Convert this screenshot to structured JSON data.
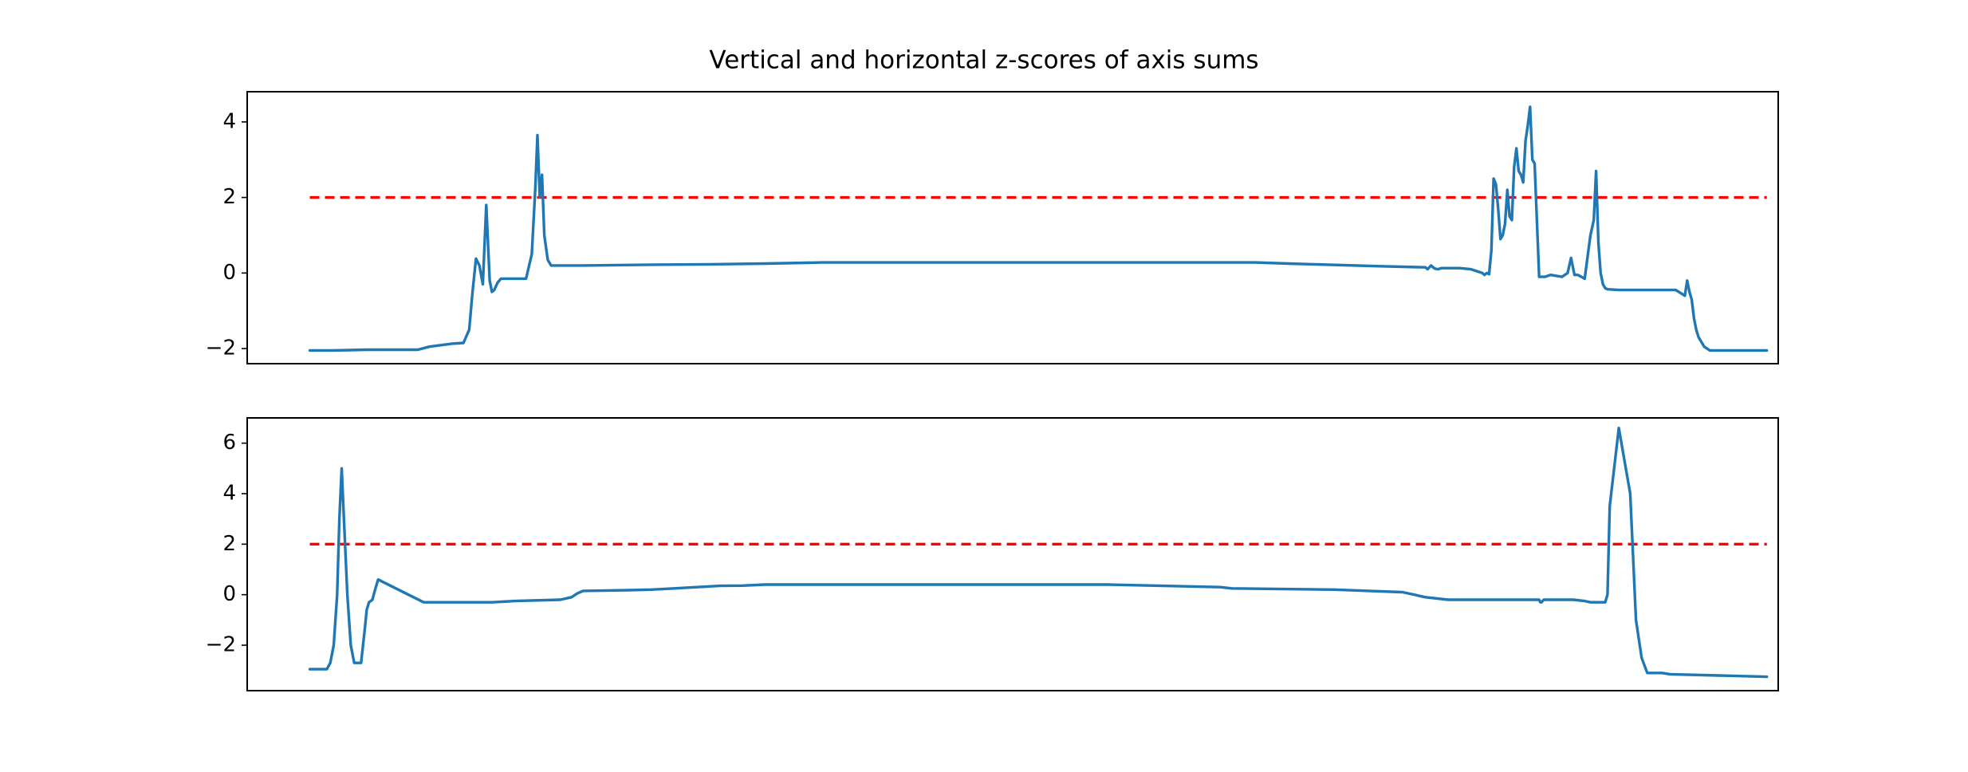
{
  "figure": {
    "title": "Vertical and horizontal z-scores of axis sums"
  },
  "colors": {
    "series": "#1f77b4",
    "threshold": "#ff0000",
    "axes": "#000000",
    "background": "#ffffff"
  },
  "chart_data": [
    {
      "type": "line",
      "title": "Vertical and horizontal z-scores of axis sums",
      "xlabel": "",
      "ylabel": "",
      "x_ticks_shown": false,
      "grid": false,
      "xlim": [
        -55,
        1290
      ],
      "ylim": [
        -2.4,
        4.8
      ],
      "yticks": [
        -2,
        0,
        2,
        4
      ],
      "ytick_labels": [
        "−2",
        "0",
        "2",
        "4"
      ],
      "threshold": 2,
      "series": [
        {
          "x": [
            0,
            20,
            35,
            50,
            80,
            95,
            105,
            125,
            135,
            140,
            143,
            146,
            149,
            152,
            155,
            158,
            160,
            162,
            165,
            168,
            172,
            180,
            190,
            195,
            198,
            200,
            202,
            204,
            206,
            209,
            212,
            216,
            240,
            300,
            350,
            400,
            450,
            500,
            550,
            600,
            650,
            700,
            750,
            830,
            860,
            940,
            980,
            982,
            985,
            988,
            991,
            994,
            1000,
            1010,
            1020,
            1030,
            1032,
            1034,
            1036,
            1038,
            1040,
            1042,
            1044,
            1046,
            1048,
            1050,
            1052,
            1054,
            1056,
            1058,
            1060,
            1062,
            1064,
            1066,
            1068,
            1070,
            1072,
            1074,
            1076,
            1080,
            1085,
            1090,
            1100,
            1105,
            1108,
            1111,
            1114,
            1120,
            1125,
            1128,
            1130,
            1132,
            1134,
            1136,
            1138,
            1140,
            1150,
            1200,
            1208,
            1210,
            1212,
            1214,
            1216,
            1218,
            1220,
            1225,
            1230,
            1235,
            1240,
            1245,
            1250,
            1255,
            1260,
            1265,
            1280
          ],
          "y": [
            -2.05,
            -2.05,
            -2.04,
            -2.03,
            -2.03,
            -2.03,
            -1.95,
            -1.87,
            -1.85,
            -1.5,
            -0.5,
            0.38,
            0.2,
            -0.3,
            1.8,
            -0.2,
            -0.5,
            -0.45,
            -0.25,
            -0.15,
            -0.15,
            -0.15,
            -0.15,
            0.5,
            2.2,
            3.65,
            2.0,
            2.6,
            1.0,
            0.35,
            0.2,
            0.2,
            0.2,
            0.22,
            0.23,
            0.25,
            0.28,
            0.28,
            0.28,
            0.28,
            0.28,
            0.28,
            0.28,
            0.28,
            0.25,
            0.18,
            0.15,
            0.1,
            0.2,
            0.12,
            0.1,
            0.13,
            0.13,
            0.13,
            0.1,
            0.0,
            -0.05,
            0.0,
            -0.03,
            0.6,
            2.5,
            2.35,
            1.7,
            0.9,
            1.0,
            1.3,
            2.2,
            1.5,
            1.4,
            2.8,
            3.3,
            2.7,
            2.6,
            2.4,
            3.5,
            3.9,
            4.4,
            3.0,
            2.9,
            -0.1,
            -0.1,
            -0.05,
            -0.1,
            0.0,
            0.4,
            -0.05,
            -0.05,
            -0.15,
            1.0,
            1.4,
            2.7,
            0.8,
            0.0,
            -0.3,
            -0.4,
            -0.43,
            -0.45,
            -0.45,
            -0.6,
            -0.2,
            -0.5,
            -0.7,
            -1.2,
            -1.5,
            -1.7,
            -1.95,
            -2.05,
            -2.05,
            -2.05,
            -2.05,
            -2.05,
            -2.05,
            -2.05,
            -2.05,
            -2.05
          ]
        }
      ]
    },
    {
      "type": "line",
      "title": "",
      "xlabel": "",
      "ylabel": "",
      "x_ticks_shown": false,
      "grid": false,
      "xlim": [
        -55,
        1290
      ],
      "ylim": [
        -3.8,
        7.0
      ],
      "yticks": [
        -2,
        0,
        2,
        4,
        6
      ],
      "ytick_labels": [
        "−2",
        "0",
        "2",
        "4",
        "6"
      ],
      "threshold": 2,
      "series": [
        {
          "x": [
            0,
            15,
            18,
            21,
            24,
            26,
            28,
            30,
            33,
            36,
            39,
            42,
            45,
            48,
            50,
            52,
            55,
            58,
            60,
            100,
            160,
            180,
            220,
            230,
            235,
            240,
            280,
            300,
            320,
            340,
            360,
            380,
            400,
            600,
            700,
            750,
            800,
            810,
            900,
            930,
            960,
            980,
            1000,
            1040,
            1080,
            1081,
            1082,
            1084,
            1086,
            1088,
            1090,
            1092,
            1094,
            1096,
            1098,
            1100,
            1110,
            1120,
            1125,
            1130,
            1135,
            1138,
            1140,
            1142,
            1150,
            1160,
            1165,
            1170,
            1175,
            1180,
            1185,
            1188,
            1195,
            1280
          ],
          "y": [
            -2.95,
            -2.95,
            -2.7,
            -2.0,
            0.0,
            3.0,
            5.0,
            3.0,
            0.0,
            -2.0,
            -2.7,
            -2.7,
            -2.7,
            -1.5,
            -0.6,
            -0.3,
            -0.2,
            0.3,
            0.6,
            -0.3,
            -0.3,
            -0.25,
            -0.2,
            -0.1,
            0.05,
            0.15,
            0.18,
            0.2,
            0.25,
            0.3,
            0.35,
            0.36,
            0.4,
            0.4,
            0.4,
            0.35,
            0.3,
            0.25,
            0.2,
            0.15,
            0.1,
            -0.1,
            -0.2,
            -0.2,
            -0.2,
            -0.3,
            -0.3,
            -0.2,
            -0.2,
            -0.2,
            -0.2,
            -0.2,
            -0.2,
            -0.2,
            -0.2,
            -0.2,
            -0.2,
            -0.25,
            -0.3,
            -0.3,
            -0.3,
            -0.3,
            0.0,
            3.5,
            6.6,
            4.0,
            -1.0,
            -2.5,
            -3.1,
            -3.1,
            -3.1,
            -3.1,
            -3.15,
            -3.25
          ]
        }
      ]
    }
  ]
}
